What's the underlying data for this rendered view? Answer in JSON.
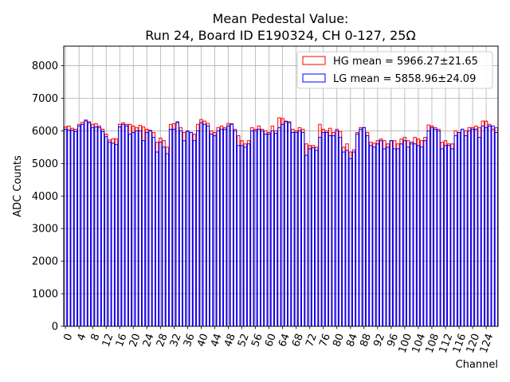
{
  "chart_data": {
    "type": "bar",
    "title_line1": "Mean Pedestal Value:",
    "title_line2": "Run 24, Board ID E190324, CH 0-127, 25Ω",
    "xlabel": "Channel",
    "ylabel": "ADC Counts",
    "xlim": [
      -0.5,
      127.5
    ],
    "ylim": [
      0,
      8600
    ],
    "grid": true,
    "legend_position": "upper-right",
    "x_ticks": [
      0,
      4,
      8,
      12,
      16,
      20,
      24,
      28,
      32,
      36,
      40,
      44,
      48,
      52,
      56,
      60,
      64,
      68,
      72,
      76,
      80,
      84,
      88,
      92,
      96,
      100,
      104,
      108,
      112,
      116,
      120,
      124
    ],
    "x_tick_labels": [
      "0",
      "4",
      "8",
      "12",
      "16",
      "20",
      "24",
      "28",
      "32",
      "36",
      "40",
      "44",
      "48",
      "52",
      "56",
      "60",
      "64",
      "68",
      "72",
      "76",
      "80",
      "84",
      "88",
      "92",
      "96",
      "100",
      "104",
      "108",
      "112",
      "116",
      "120",
      "124"
    ],
    "y_ticks": [
      0,
      1000,
      2000,
      3000,
      4000,
      5000,
      6000,
      7000,
      8000
    ],
    "y_tick_labels": [
      "0",
      "1000",
      "2000",
      "3000",
      "4000",
      "5000",
      "6000",
      "7000",
      "8000"
    ],
    "series": [
      {
        "name": "HG",
        "label": "HG mean = 5966.27±21.65",
        "edge_color": "#ff0000",
        "values": [
          6120,
          6150,
          6080,
          6050,
          6200,
          6260,
          6300,
          6280,
          6200,
          6220,
          6150,
          6050,
          5900,
          5720,
          5760,
          5750,
          6200,
          6250,
          6200,
          6200,
          6150,
          6100,
          6170,
          6120,
          6050,
          6020,
          5950,
          5650,
          5780,
          5700,
          5500,
          6200,
          6220,
          6250,
          6100,
          5950,
          5980,
          5950,
          5900,
          6200,
          6350,
          6300,
          6230,
          6000,
          5950,
          6100,
          6150,
          6100,
          6230,
          6220,
          6050,
          5850,
          5700,
          5600,
          5700,
          6100,
          6050,
          6150,
          6050,
          6000,
          5950,
          6150,
          6000,
          6400,
          6380,
          6300,
          6280,
          6050,
          6000,
          6100,
          6050,
          5600,
          5550,
          5550,
          5500,
          6200,
          6050,
          6000,
          6080,
          5950,
          6050,
          5980,
          5500,
          5600,
          5350,
          5420,
          5950,
          6100,
          6100,
          5950,
          5650,
          5620,
          5700,
          5750,
          5700,
          5600,
          5700,
          5700,
          5600,
          5750,
          5800,
          5700,
          5600,
          5800,
          5750,
          5700,
          5800,
          6180,
          6150,
          6100,
          6050,
          5650,
          5700,
          5600,
          5600,
          6000,
          5950,
          6050,
          6000,
          6100,
          6100,
          6150,
          6100,
          6300,
          6300,
          6200,
          6050,
          6100
        ]
      },
      {
        "name": "LG",
        "label": "LG mean = 5858.96±24.09",
        "edge_color": "#0000ff",
        "values": [
          6050,
          6020,
          6020,
          5980,
          6150,
          6200,
          6330,
          6250,
          6100,
          6120,
          6100,
          5980,
          5820,
          5650,
          5620,
          5580,
          6120,
          6200,
          6150,
          5900,
          5950,
          6000,
          6000,
          5700,
          5950,
          6000,
          5800,
          5350,
          5650,
          5500,
          5300,
          6050,
          6050,
          6280,
          6000,
          5700,
          6000,
          5950,
          5700,
          6000,
          6250,
          6200,
          6150,
          5900,
          5850,
          6000,
          6050,
          6050,
          6150,
          6200,
          6000,
          5550,
          5550,
          5500,
          5600,
          6000,
          6000,
          6050,
          6000,
          5900,
          5900,
          6000,
          5920,
          6100,
          6200,
          6280,
          6250,
          5950,
          5950,
          6000,
          5950,
          5250,
          5450,
          5480,
          5400,
          5800,
          5950,
          5950,
          5850,
          5850,
          6000,
          5800,
          5350,
          5400,
          5150,
          5350,
          5900,
          6050,
          6100,
          5850,
          5550,
          5500,
          5600,
          5700,
          5450,
          5500,
          5700,
          5450,
          5450,
          5600,
          5700,
          5500,
          5650,
          5600,
          5550,
          5500,
          5700,
          6000,
          6100,
          6050,
          6000,
          5450,
          5550,
          5550,
          5450,
          5850,
          5950,
          6050,
          5850,
          6000,
          6050,
          6050,
          5800,
          6150,
          6100,
          6150,
          6150,
          5950
        ]
      }
    ]
  }
}
